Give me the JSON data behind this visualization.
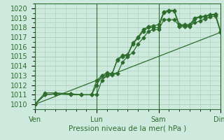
{
  "xlabel": "Pression niveau de la mer( hPa )",
  "bg_color": "#ceeade",
  "grid_color": "#b8dcc8",
  "line_color": "#2d6e2d",
  "xlim": [
    0,
    72
  ],
  "ylim": [
    1009.5,
    1020.5
  ],
  "yticks": [
    1010,
    1011,
    1012,
    1013,
    1014,
    1015,
    1016,
    1017,
    1018,
    1019,
    1020
  ],
  "xtick_positions": [
    0,
    24,
    48,
    72
  ],
  "xtick_labels": [
    "Ven",
    "Lun",
    "Sam",
    "Dim"
  ],
  "series1": {
    "x": [
      0,
      4,
      8,
      14,
      18,
      22,
      24,
      26,
      28,
      30,
      32,
      34,
      36,
      38,
      40,
      42,
      44,
      46,
      48,
      50,
      52,
      54,
      56,
      58,
      60,
      62,
      64,
      66,
      68,
      70,
      72
    ],
    "y": [
      1010.0,
      1011.0,
      1011.1,
      1011.1,
      1011.0,
      1011.0,
      1012.5,
      1013.0,
      1013.3,
      1013.2,
      1014.6,
      1015.0,
      1015.1,
      1016.3,
      1016.9,
      1017.6,
      1018.0,
      1018.0,
      1018.0,
      1019.55,
      1019.7,
      1019.7,
      1018.1,
      1018.1,
      1018.1,
      1018.9,
      1019.1,
      1019.15,
      1019.3,
      1019.3,
      1017.5
    ]
  },
  "series2": {
    "x": [
      0,
      4,
      8,
      14,
      18,
      22,
      24,
      26,
      28,
      30,
      32,
      34,
      36,
      38,
      40,
      42,
      44,
      46,
      48,
      50,
      52,
      54,
      56,
      58,
      60,
      62,
      64,
      66,
      68,
      70,
      72
    ],
    "y": [
      1010.0,
      1011.0,
      1011.1,
      1011.0,
      1011.0,
      1011.0,
      1011.0,
      1012.5,
      1013.0,
      1013.1,
      1013.2,
      1014.4,
      1015.0,
      1015.4,
      1016.3,
      1016.9,
      1017.6,
      1017.8,
      1017.8,
      1018.8,
      1018.8,
      1018.8,
      1018.2,
      1018.2,
      1018.2,
      1018.5,
      1018.7,
      1018.9,
      1019.1,
      1019.2,
      1017.5
    ]
  },
  "series3": {
    "x": [
      0,
      4,
      8,
      14,
      18,
      22,
      24,
      26,
      28,
      30,
      32,
      34,
      36,
      38,
      40,
      42,
      44,
      46,
      48,
      50,
      52,
      54,
      56,
      58,
      60,
      62,
      64,
      66,
      68,
      70,
      72
    ],
    "y": [
      1010.0,
      1011.2,
      1011.2,
      1011.1,
      1011.0,
      1011.0,
      1012.0,
      1013.0,
      1013.1,
      1013.2,
      1014.7,
      1015.1,
      1015.2,
      1016.4,
      1017.0,
      1017.8,
      1018.1,
      1018.2,
      1018.3,
      1019.65,
      1019.8,
      1019.8,
      1018.3,
      1018.3,
      1018.3,
      1019.0,
      1019.15,
      1019.2,
      1019.35,
      1019.4,
      1017.6
    ]
  },
  "series_straight": {
    "x": [
      0,
      72
    ],
    "y": [
      1010.0,
      1017.5
    ]
  }
}
